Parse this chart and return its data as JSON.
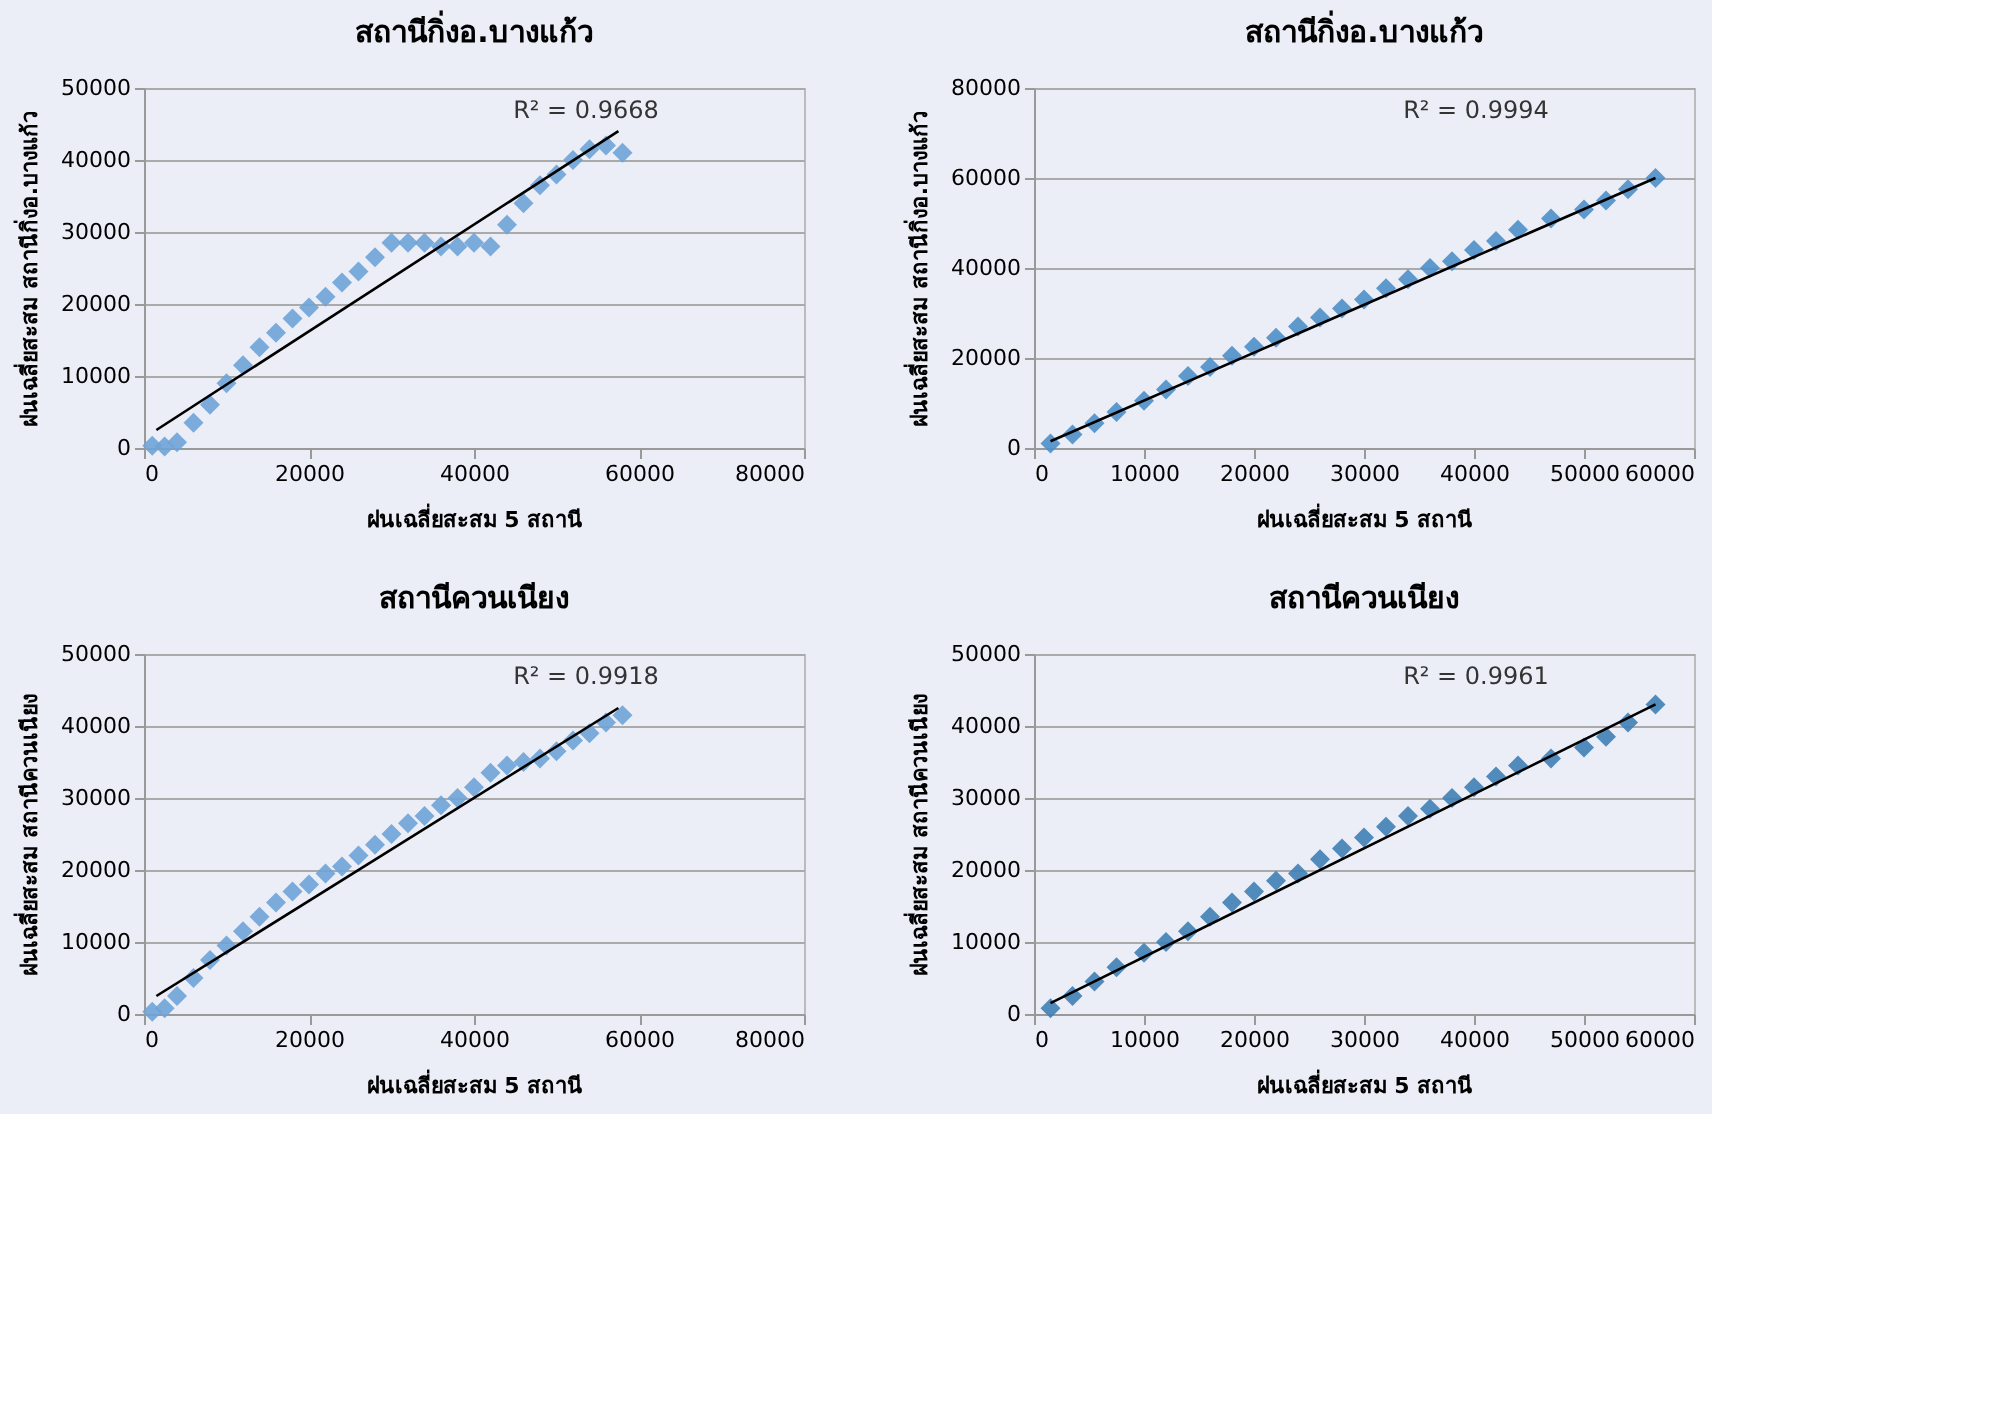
{
  "chart_data": [
    {
      "type": "scatter",
      "title": "สถานีกิ่งอ.บางแก้ว",
      "xlabel": "ฝนเฉลี่ยสะสม 5 สถานี",
      "ylabel": "ฝนเฉลี่ยสะสม  สถานีกิ่งอ.บางแก้ว",
      "xlim": [
        0,
        80000
      ],
      "xticks": [
        0,
        20000,
        40000,
        60000,
        80000
      ],
      "ylim": [
        0,
        50000
      ],
      "yticks": [
        0,
        10000,
        20000,
        30000,
        40000,
        50000
      ],
      "grid": "y",
      "annotations": [
        "R² = 0.9668"
      ],
      "series": [
        {
          "type": "scatter",
          "marker": "diamond",
          "color": "#6fa3d6",
          "x": [
            1000,
            2500,
            4000,
            6000,
            8000,
            10000,
            12000,
            14000,
            16000,
            18000,
            20000,
            22000,
            24000,
            26000,
            28000,
            30000,
            32000,
            34000,
            36000,
            38000,
            40000,
            42000,
            44000,
            46000,
            48000,
            50000,
            52000,
            54000,
            56000,
            58000
          ],
          "values": [
            300,
            200,
            800,
            3500,
            6000,
            9000,
            11500,
            14000,
            16000,
            18000,
            19500,
            21000,
            23000,
            24500,
            26500,
            28500,
            28500,
            28500,
            28000,
            28000,
            28500,
            28000,
            31000,
            34000,
            36500,
            38000,
            40000,
            41500,
            42000,
            41000
          ]
        },
        {
          "type": "line",
          "marker": "none",
          "color": "#000000",
          "x": [
            1500,
            57500
          ],
          "values": [
            2500,
            44000
          ]
        }
      ]
    },
    {
      "type": "scatter",
      "title": "สถานีกิ่งอ.บางแก้ว",
      "xlabel": "ฝนเฉลี่ยสะสม 5 สถานี",
      "ylabel": "ฝนเฉลี่ยสะสม  สถานีกิ่งอ.บางแก้ว",
      "xlim": [
        0,
        60000
      ],
      "xticks": [
        0,
        10000,
        20000,
        30000,
        40000,
        50000,
        60000
      ],
      "ylim": [
        0,
        80000
      ],
      "yticks": [
        0,
        20000,
        40000,
        60000,
        80000
      ],
      "grid": "y",
      "annotations": [
        "R² = 0.9994"
      ],
      "series": [
        {
          "type": "scatter",
          "marker": "diamond",
          "color": "#4f8fc8",
          "x": [
            1500,
            3500,
            5500,
            7500,
            10000,
            12000,
            14000,
            16000,
            18000,
            20000,
            22000,
            24000,
            26000,
            28000,
            30000,
            32000,
            34000,
            36000,
            38000,
            40000,
            42000,
            44000,
            47000,
            50000,
            52000,
            54000,
            56500
          ],
          "values": [
            1000,
            3000,
            5500,
            8000,
            10500,
            13000,
            16000,
            18000,
            20500,
            22500,
            24500,
            27000,
            29000,
            31000,
            33000,
            35500,
            37500,
            40000,
            41500,
            44000,
            46000,
            48500,
            51000,
            53000,
            55000,
            57500,
            60000
          ]
        },
        {
          "type": "line",
          "marker": "none",
          "color": "#000000",
          "x": [
            1500,
            56500
          ],
          "values": [
            1500,
            60000
          ]
        }
      ]
    },
    {
      "type": "scatter",
      "title": "สถานีควนเนียง",
      "xlabel": "ฝนเฉลี่ยสะสม 5 สถานี",
      "ylabel": "ฝนเฉลี่ยสะสม  สถานีควนเนียง",
      "xlim": [
        0,
        80000
      ],
      "xticks": [
        0,
        20000,
        40000,
        60000,
        80000
      ],
      "ylim": [
        0,
        50000
      ],
      "yticks": [
        0,
        10000,
        20000,
        30000,
        40000,
        50000
      ],
      "grid": "y",
      "annotations": [
        "R² = 0.9918"
      ],
      "series": [
        {
          "type": "scatter",
          "marker": "diamond",
          "color": "#6fa3d6",
          "x": [
            1000,
            2500,
            4000,
            6000,
            8000,
            10000,
            12000,
            14000,
            16000,
            18000,
            20000,
            22000,
            24000,
            26000,
            28000,
            30000,
            32000,
            34000,
            36000,
            38000,
            40000,
            42000,
            44000,
            46000,
            48000,
            50000,
            52000,
            54000,
            56000,
            58000
          ],
          "values": [
            300,
            800,
            2500,
            5000,
            7500,
            9500,
            11500,
            13500,
            15500,
            17000,
            18000,
            19500,
            20500,
            22000,
            23500,
            25000,
            26500,
            27500,
            29000,
            30000,
            31500,
            33500,
            34500,
            35000,
            35500,
            36500,
            38000,
            39000,
            40500,
            41500
          ]
        },
        {
          "type": "line",
          "marker": "none",
          "color": "#000000",
          "x": [
            1500,
            57500
          ],
          "values": [
            2500,
            42500
          ]
        }
      ]
    },
    {
      "type": "scatter",
      "title": "สถานีควนเนียง",
      "xlabel": "ฝนเฉลี่ยสะสม 5 สถานี",
      "ylabel": "ฝนเฉลี่ยสะสม  สถานีควนเนียง",
      "xlim": [
        0,
        60000
      ],
      "xticks": [
        0,
        10000,
        20000,
        30000,
        40000,
        50000,
        60000
      ],
      "ylim": [
        0,
        50000
      ],
      "yticks": [
        0,
        10000,
        20000,
        30000,
        40000,
        50000
      ],
      "grid": "y",
      "annotations": [
        "R² = 0.9961"
      ],
      "series": [
        {
          "type": "scatter",
          "marker": "diamond",
          "color": "#3f7fb5",
          "x": [
            1500,
            3500,
            5500,
            7500,
            10000,
            12000,
            14000,
            16000,
            18000,
            20000,
            22000,
            24000,
            26000,
            28000,
            30000,
            32000,
            34000,
            36000,
            38000,
            40000,
            42000,
            44000,
            47000,
            50000,
            52000,
            54000,
            56500
          ],
          "values": [
            800,
            2500,
            4500,
            6500,
            8500,
            10000,
            11500,
            13500,
            15500,
            17000,
            18500,
            19500,
            21500,
            23000,
            24500,
            26000,
            27500,
            28500,
            30000,
            31500,
            33000,
            34500,
            35500,
            37000,
            38500,
            40500,
            43000
          ]
        },
        {
          "type": "line",
          "marker": "none",
          "color": "#000000",
          "x": [
            1500,
            56500
          ],
          "values": [
            1500,
            43000
          ]
        }
      ]
    }
  ]
}
